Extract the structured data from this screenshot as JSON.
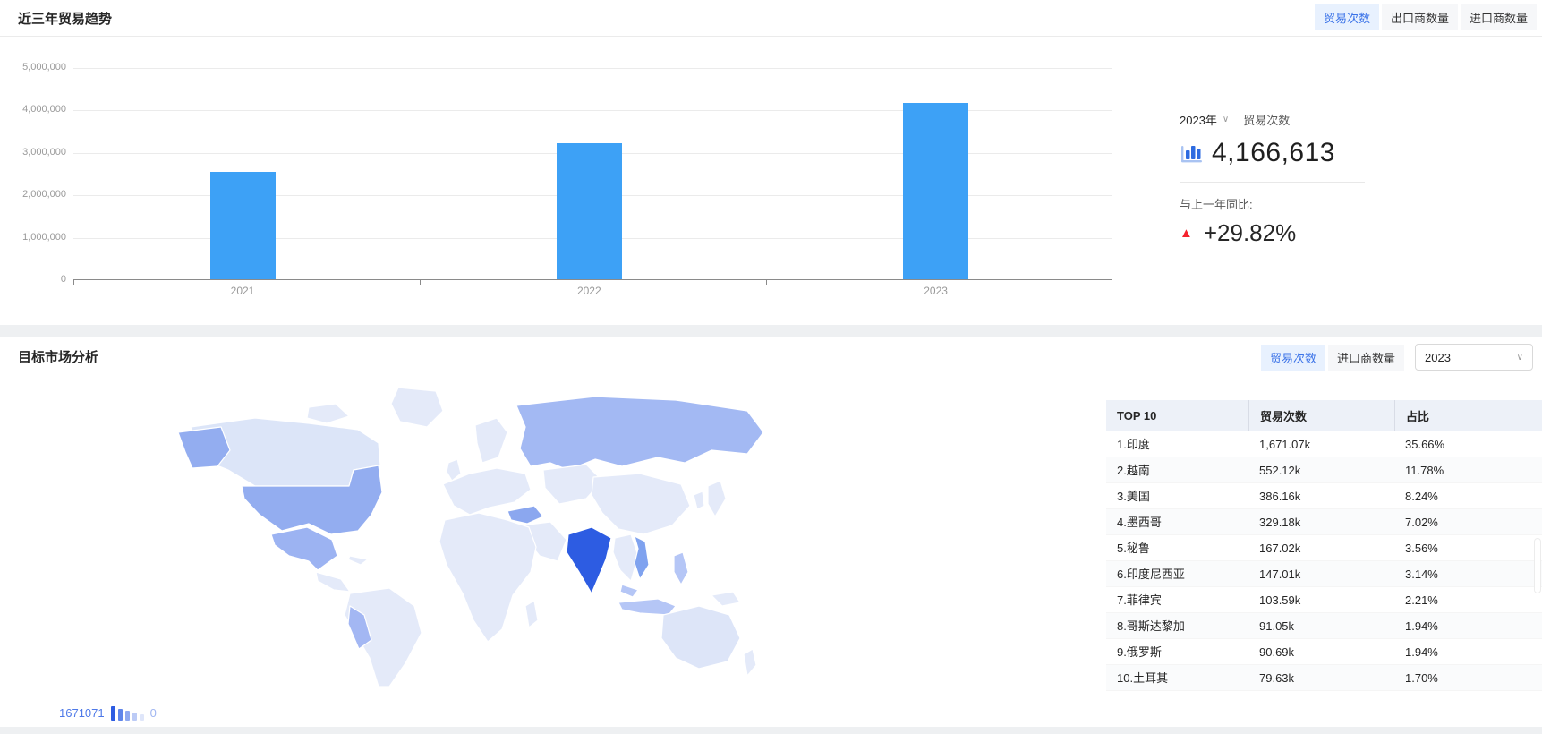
{
  "icons": {
    "caret_down": "∨",
    "triangle_up": "▲"
  },
  "colors": {
    "bar_blue": "#3da1f6",
    "accent_blue": "#3b73e8",
    "active_tab_bg": "#e8f1fe",
    "alert_red": "#f5222d",
    "map_max": "#2d5ce2",
    "map_min": "#e4eaf9"
  },
  "section_trend": {
    "title": "近三年贸易趋势",
    "tabs": [
      {
        "label": "贸易次数",
        "active": true
      },
      {
        "label": "出口商数量",
        "active": false
      },
      {
        "label": "进口商数量",
        "active": false
      }
    ],
    "stat": {
      "year_select": "2023年",
      "metric_label": "贸易次数",
      "value": "4,166,613",
      "yoy_label": "与上一年同比:",
      "yoy_value": "+29.82%"
    }
  },
  "section_market": {
    "title": "目标市场分析",
    "tabs": [
      {
        "label": "贸易次数",
        "active": true
      },
      {
        "label": "进口商数量",
        "active": false
      }
    ],
    "year_select": "2023",
    "legend": {
      "max": "1671071",
      "min": "0",
      "bars": [
        {
          "h": 16,
          "color": "#2d5ce2"
        },
        {
          "h": 13,
          "color": "#5f85ea"
        },
        {
          "h": 11,
          "color": "#8fa9f0"
        },
        {
          "h": 9,
          "color": "#bccbf6"
        },
        {
          "h": 7,
          "color": "#dfe6fa"
        }
      ]
    },
    "table": {
      "headers": [
        "TOP 10",
        "贸易次数",
        "占比"
      ],
      "rows": [
        [
          "1.印度",
          "1,671.07k",
          "35.66%"
        ],
        [
          "2.越南",
          "552.12k",
          "11.78%"
        ],
        [
          "3.美国",
          "386.16k",
          "8.24%"
        ],
        [
          "4.墨西哥",
          "329.18k",
          "7.02%"
        ],
        [
          "5.秘鲁",
          "167.02k",
          "3.56%"
        ],
        [
          "6.印度尼西亚",
          "147.01k",
          "3.14%"
        ],
        [
          "7.菲律宾",
          "103.59k",
          "2.21%"
        ],
        [
          "8.哥斯达黎加",
          "91.05k",
          "1.94%"
        ],
        [
          "9.俄罗斯",
          "90.69k",
          "1.94%"
        ],
        [
          "10.土耳其",
          "79.63k",
          "1.70%"
        ]
      ]
    }
  },
  "chart_data": [
    {
      "type": "bar",
      "title": "近三年贸易趋势",
      "categories": [
        "2021",
        "2022",
        "2023"
      ],
      "series": [
        {
          "name": "贸易次数",
          "values": [
            2540000,
            3210000,
            4166613
          ]
        }
      ],
      "xlabel": "",
      "ylabel": "",
      "ylim": [
        0,
        5000000
      ],
      "ytick_labels": [
        "5,000,000",
        "4,000,000",
        "3,000,000",
        "2,000,000",
        "1,000,000",
        "0"
      ],
      "grid": true,
      "legend_position": "none",
      "bar_color": "#3da1f6"
    },
    {
      "type": "heatmap",
      "subtype": "world-choropleth",
      "title": "目标市场分析",
      "metric": "贸易次数",
      "year": "2023",
      "value_range": [
        0,
        1671071
      ],
      "entries": [
        {
          "rank": 1,
          "name": "印度",
          "value": "1,671.07k",
          "share": "35.66%"
        },
        {
          "rank": 2,
          "name": "越南",
          "value": "552.12k",
          "share": "11.78%"
        },
        {
          "rank": 3,
          "name": "美国",
          "value": "386.16k",
          "share": "8.24%"
        },
        {
          "rank": 4,
          "name": "墨西哥",
          "value": "329.18k",
          "share": "7.02%"
        },
        {
          "rank": 5,
          "name": "秘鲁",
          "value": "167.02k",
          "share": "3.56%"
        },
        {
          "rank": 6,
          "name": "印度尼西亚",
          "value": "147.01k",
          "share": "3.14%"
        },
        {
          "rank": 7,
          "name": "菲律宾",
          "value": "103.59k",
          "share": "2.21%"
        },
        {
          "rank": 8,
          "name": "哥斯达黎加",
          "value": "91.05k",
          "share": "1.94%"
        },
        {
          "rank": 9,
          "name": "俄罗斯",
          "value": "90.69k",
          "share": "1.94%"
        },
        {
          "rank": 10,
          "name": "土耳其",
          "value": "79.63k",
          "share": "1.70%"
        }
      ]
    }
  ]
}
